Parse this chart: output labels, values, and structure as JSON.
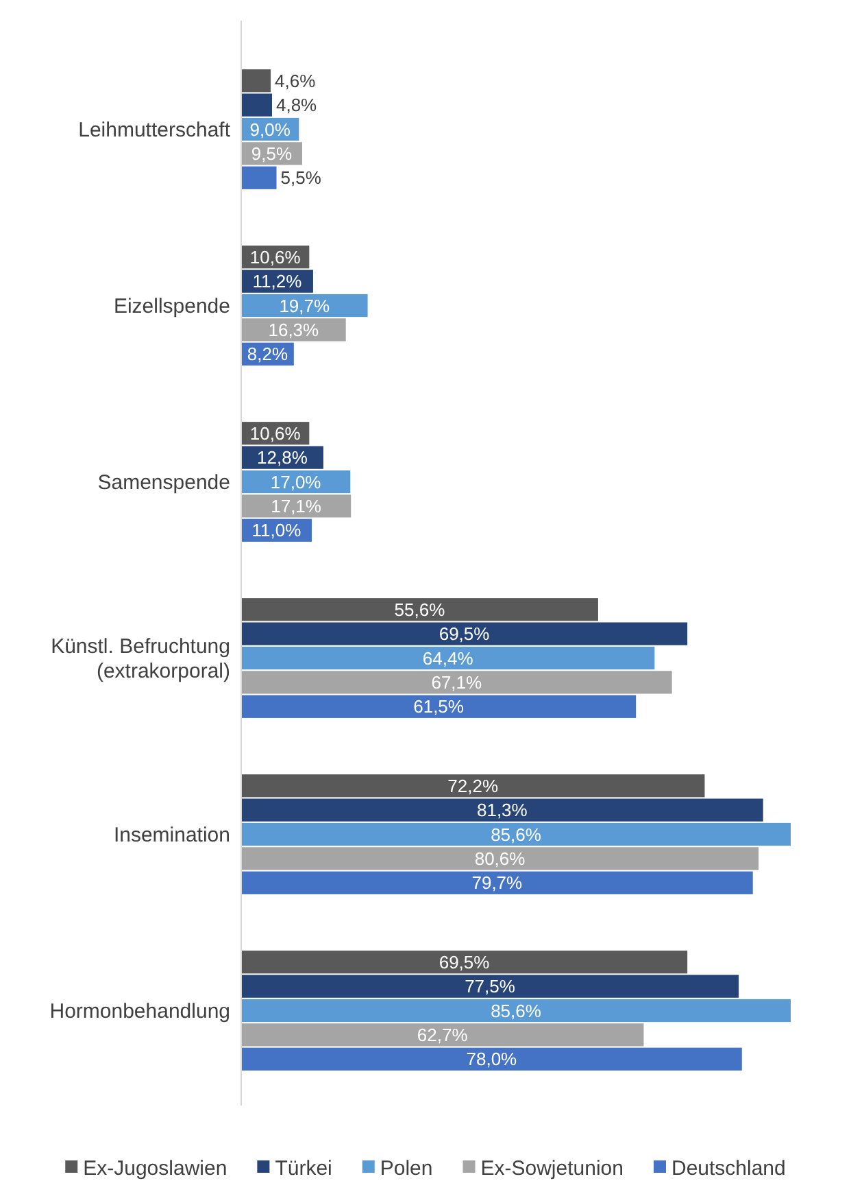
{
  "chart_data": {
    "type": "bar",
    "orientation": "horizontal",
    "categories": [
      "Leihmutterschaft",
      "Eizellspende",
      "Samenspende",
      "Künstl. Befruchtung (extrakorporal)",
      "Insemination",
      "Hormonbehandlung"
    ],
    "series": [
      {
        "name": "Ex-Jugoslawien",
        "color": "#595959",
        "values": [
          4.6,
          10.6,
          10.6,
          55.6,
          72.2,
          69.5
        ],
        "value_labels": [
          "4,6%",
          "10,6%",
          "10,6%",
          "55,6%",
          "72,2%",
          "69,5%"
        ]
      },
      {
        "name": "Türkei",
        "color": "#264478",
        "values": [
          4.8,
          11.2,
          12.8,
          69.5,
          81.3,
          77.5
        ],
        "value_labels": [
          "4,8%",
          "11,2%",
          "12,8%",
          "69,5%",
          "81,3%",
          "77,5%"
        ]
      },
      {
        "name": "Polen",
        "color": "#5b9bd5",
        "values": [
          9.0,
          19.7,
          17.0,
          64.4,
          85.6,
          85.6
        ],
        "value_labels": [
          "9,0%",
          "19,7%",
          "17,0%",
          "64,4%",
          "85,6%",
          "85,6%"
        ]
      },
      {
        "name": "Ex-Sowjetunion",
        "color": "#a5a5a5",
        "values": [
          9.5,
          16.3,
          17.1,
          67.1,
          80.6,
          62.7
        ],
        "value_labels": [
          "9,5%",
          "16,3%",
          "17,1%",
          "67,1%",
          "80,6%",
          "62,7%"
        ]
      },
      {
        "name": "Deutschland",
        "color": "#4472c4",
        "values": [
          5.5,
          8.2,
          11.0,
          61.5,
          79.7,
          78.0
        ],
        "value_labels": [
          "5,5%",
          "8,2%",
          "11,0%",
          "61,5%",
          "79,7%",
          "78,0%"
        ]
      }
    ],
    "tick_labels": "y",
    "legend": "bottom"
  }
}
